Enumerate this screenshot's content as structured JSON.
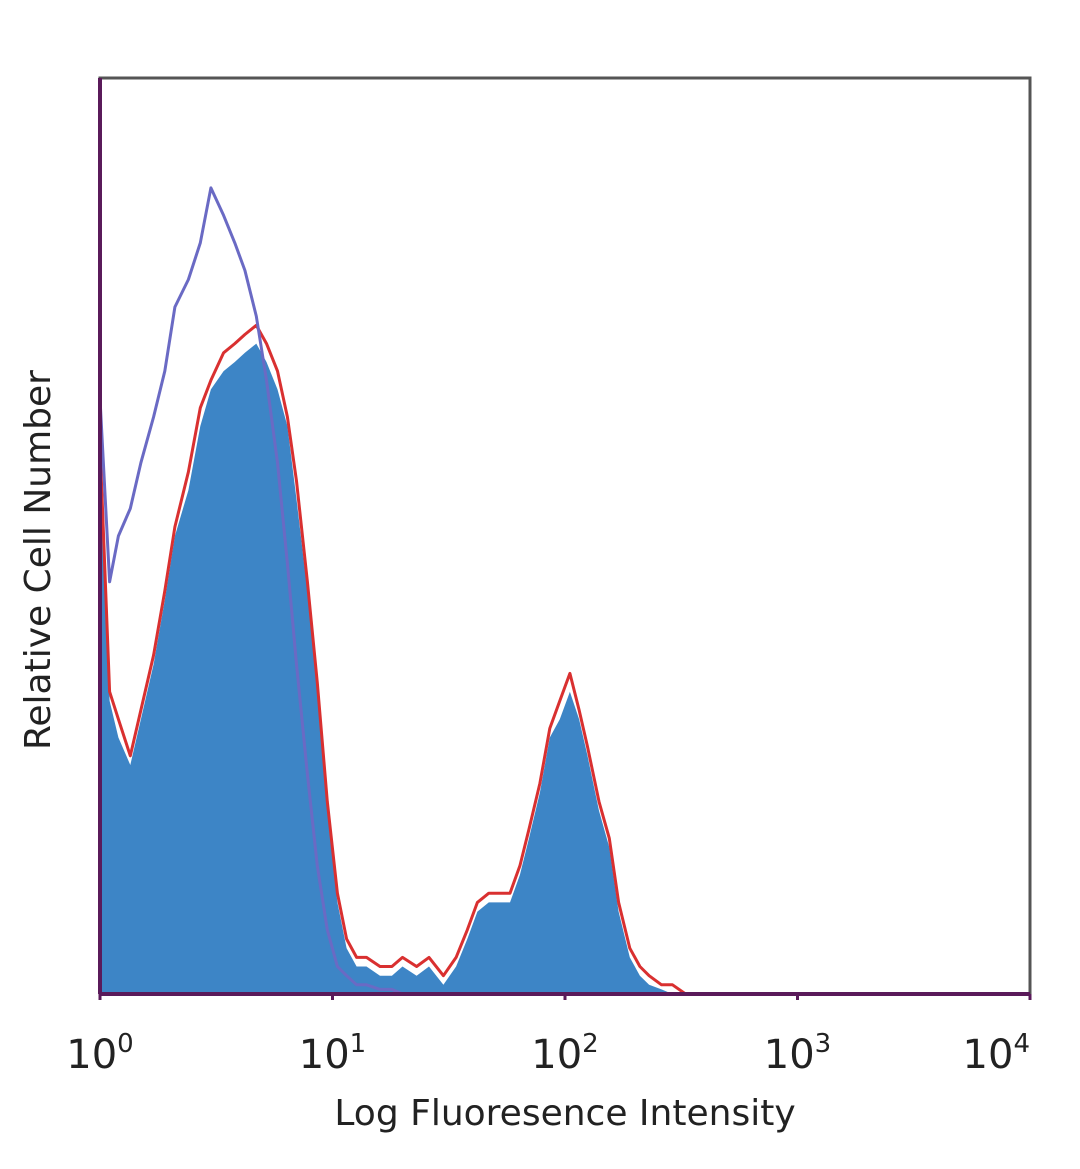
{
  "chart_data": {
    "type": "area",
    "xlabel": "Log Fluoresence Intensity",
    "ylabel": "Relative Cell Number",
    "x_scale": "log",
    "xlim": [
      1,
      10000
    ],
    "ylim": [
      0,
      100
    ],
    "grid": false,
    "legend": "none",
    "x_ticks": [
      {
        "base": "10",
        "exp": "0",
        "value": 1
      },
      {
        "base": "10",
        "exp": "1",
        "value": 10
      },
      {
        "base": "10",
        "exp": "2",
        "value": 100
      },
      {
        "base": "10",
        "exp": "3",
        "value": 1000
      },
      {
        "base": "10",
        "exp": "4",
        "value": 10000
      }
    ],
    "series": [
      {
        "style": "filled",
        "color": "#3d85c6",
        "x": [
          1,
          1.1,
          1.2,
          1.35,
          1.5,
          1.7,
          1.9,
          2.1,
          2.4,
          2.7,
          3.0,
          3.4,
          3.8,
          4.2,
          4.7,
          5.2,
          5.8,
          6.4,
          7.0,
          7.8,
          8.6,
          9.5,
          10.5,
          11.5,
          12.7,
          14,
          16,
          18,
          20,
          23,
          26,
          30,
          34,
          38,
          42,
          47,
          52,
          58,
          64,
          70,
          78,
          86,
          95,
          105,
          115,
          125,
          140,
          155,
          170,
          190,
          210,
          230,
          260,
          290,
          330,
          400,
          10000
        ],
        "y": [
          60,
          32,
          28,
          25,
          30,
          36,
          43,
          50,
          55,
          62,
          66,
          68,
          69,
          70,
          71,
          69,
          66,
          62,
          54,
          44,
          33,
          20,
          10,
          5,
          3,
          3,
          2,
          2,
          3,
          2,
          3,
          1,
          3,
          6,
          9,
          10,
          10,
          10,
          13,
          17,
          22,
          28,
          30,
          33,
          30,
          26,
          20,
          16,
          9,
          4,
          2,
          1,
          0.5,
          0,
          0,
          0,
          0
        ]
      },
      {
        "style": "line",
        "color": "#d93030",
        "x": [
          1,
          1.1,
          1.2,
          1.35,
          1.5,
          1.7,
          1.9,
          2.1,
          2.4,
          2.7,
          3.0,
          3.4,
          3.8,
          4.2,
          4.7,
          5.2,
          5.8,
          6.4,
          7.0,
          7.8,
          8.6,
          9.5,
          10.5,
          11.5,
          12.7,
          14,
          16,
          18,
          20,
          23,
          26,
          30,
          34,
          38,
          42,
          47,
          52,
          58,
          64,
          70,
          78,
          86,
          95,
          105,
          115,
          125,
          140,
          155,
          170,
          190,
          210,
          230,
          260,
          290,
          330,
          400,
          10000
        ],
        "y": [
          60,
          33,
          30,
          26,
          31,
          37,
          44,
          51,
          57,
          64,
          67,
          70,
          71,
          72,
          73,
          71,
          68,
          63,
          56,
          45,
          34,
          21,
          11,
          6,
          4,
          4,
          3,
          3,
          4,
          3,
          4,
          2,
          4,
          7,
          10,
          11,
          11,
          11,
          14,
          18,
          23,
          29,
          32,
          35,
          31,
          27,
          21,
          17,
          10,
          5,
          3,
          2,
          1,
          1,
          0,
          0,
          0
        ]
      },
      {
        "style": "line",
        "color": "#6a6ac4",
        "x": [
          1,
          1.1,
          1.2,
          1.35,
          1.5,
          1.7,
          1.9,
          2.1,
          2.4,
          2.7,
          3.0,
          3.4,
          3.8,
          4.2,
          4.7,
          5.2,
          5.8,
          6.4,
          7.0,
          7.8,
          8.6,
          9.5,
          10.5,
          11.5,
          12.7,
          14,
          16,
          18,
          20,
          30,
          50,
          100,
          200,
          10000
        ],
        "y": [
          65,
          45,
          50,
          53,
          58,
          63,
          68,
          75,
          78,
          82,
          88,
          85,
          82,
          79,
          74,
          67,
          58,
          47,
          36,
          24,
          14,
          7,
          3,
          2,
          1,
          1,
          0.5,
          0.5,
          0,
          0,
          0,
          0,
          0,
          0
        ]
      }
    ]
  }
}
